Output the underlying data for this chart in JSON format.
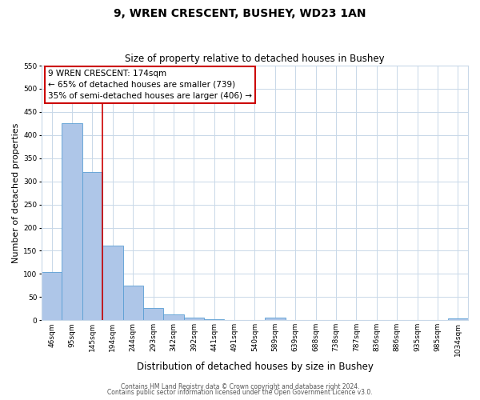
{
  "title": "9, WREN CRESCENT, BUSHEY, WD23 1AN",
  "subtitle": "Size of property relative to detached houses in Bushey",
  "xlabel": "Distribution of detached houses by size in Bushey",
  "ylabel": "Number of detached properties",
  "bar_labels": [
    "46sqm",
    "95sqm",
    "145sqm",
    "194sqm",
    "244sqm",
    "293sqm",
    "342sqm",
    "392sqm",
    "441sqm",
    "491sqm",
    "540sqm",
    "589sqm",
    "639sqm",
    "688sqm",
    "738sqm",
    "787sqm",
    "836sqm",
    "886sqm",
    "935sqm",
    "985sqm",
    "1034sqm"
  ],
  "bar_values": [
    105,
    425,
    320,
    162,
    75,
    27,
    13,
    5,
    2,
    0,
    0,
    5,
    0,
    0,
    0,
    0,
    0,
    0,
    0,
    0,
    4
  ],
  "bar_color": "#aec6e8",
  "bar_edge_color": "#5a9fd4",
  "marker_line_color": "#cc0000",
  "ylim": [
    0,
    550
  ],
  "yticks": [
    0,
    50,
    100,
    150,
    200,
    250,
    300,
    350,
    400,
    450,
    500,
    550
  ],
  "annotation_line1": "9 WREN CRESCENT: 174sqm",
  "annotation_line2": "← 65% of detached houses are smaller (739)",
  "annotation_line3": "35% of semi-detached houses are larger (406) →",
  "footer_line1": "Contains HM Land Registry data © Crown copyright and database right 2024.",
  "footer_line2": "Contains public sector information licensed under the Open Government Licence v3.0.",
  "background_color": "#ffffff",
  "grid_color": "#c8d8e8",
  "title_fontsize": 10,
  "subtitle_fontsize": 8.5,
  "ylabel_fontsize": 8,
  "xlabel_fontsize": 8.5,
  "tick_fontsize": 6.5,
  "annotation_fontsize": 7.5,
  "footer_fontsize": 5.5
}
